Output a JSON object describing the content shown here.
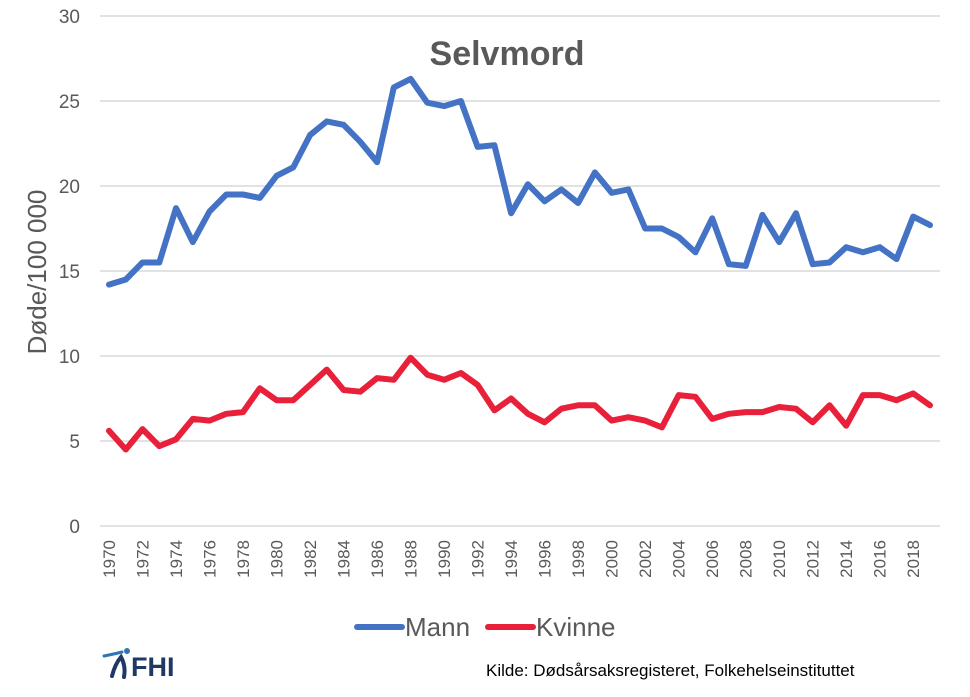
{
  "chart_data": {
    "type": "line",
    "title": "Selvmord",
    "xlabel": "",
    "ylabel": "Døde/100 000",
    "ylim": [
      0,
      30
    ],
    "yticks": [
      0,
      5,
      10,
      15,
      20,
      25,
      30
    ],
    "grid": true,
    "legend": "bottom",
    "x": [
      1970,
      1971,
      1972,
      1973,
      1974,
      1975,
      1976,
      1977,
      1978,
      1979,
      1980,
      1981,
      1982,
      1983,
      1984,
      1985,
      1986,
      1987,
      1988,
      1989,
      1990,
      1991,
      1992,
      1993,
      1994,
      1995,
      1996,
      1997,
      1998,
      1999,
      2000,
      2001,
      2002,
      2003,
      2004,
      2005,
      2006,
      2007,
      2008,
      2009,
      2010,
      2011,
      2012,
      2013,
      2014,
      2015,
      2016,
      2017,
      2018,
      2019
    ],
    "xtick_labels": [
      "1970",
      "1972",
      "1974",
      "1976",
      "1978",
      "1980",
      "1982",
      "1984",
      "1986",
      "1988",
      "1990",
      "1992",
      "1994",
      "1996",
      "1998",
      "2000",
      "2002",
      "2004",
      "2006",
      "2008",
      "2010",
      "2012",
      "2014",
      "2016",
      "2018"
    ],
    "series": [
      {
        "name": "Mann",
        "color": "#4472c4",
        "values": [
          14.2,
          14.5,
          15.5,
          15.5,
          18.7,
          16.7,
          18.5,
          19.5,
          19.5,
          19.3,
          20.6,
          21.1,
          23.0,
          23.8,
          23.6,
          22.6,
          21.4,
          25.8,
          26.3,
          24.9,
          24.7,
          25.0,
          22.3,
          22.4,
          18.4,
          20.1,
          19.1,
          19.8,
          19.0,
          20.8,
          19.6,
          19.8,
          17.5,
          17.5,
          17.0,
          16.1,
          18.1,
          15.4,
          15.3,
          18.3,
          16.7,
          18.4,
          15.4,
          15.5,
          16.4,
          16.1,
          16.4,
          15.7,
          18.2,
          17.7
        ]
      },
      {
        "name": "Kvinne",
        "color": "#e8203a",
        "values": [
          5.6,
          4.5,
          5.7,
          4.7,
          5.1,
          6.3,
          6.2,
          6.6,
          6.7,
          8.1,
          7.4,
          7.4,
          8.3,
          9.2,
          8.0,
          7.9,
          8.7,
          8.6,
          9.9,
          8.9,
          8.6,
          9.0,
          8.3,
          6.8,
          7.5,
          6.6,
          6.1,
          6.9,
          7.1,
          7.1,
          6.2,
          6.4,
          6.2,
          5.8,
          7.7,
          7.6,
          6.3,
          6.6,
          6.7,
          6.7,
          7.0,
          6.9,
          6.1,
          7.1,
          5.9,
          7.7,
          7.7,
          7.4,
          7.8,
          7.1
        ]
      }
    ]
  },
  "source_text": "Kilde: Dødsårsaksregisteret, Folkehelseinstituttet",
  "logo": {
    "text": "FHI",
    "accent": "#1f3864"
  }
}
